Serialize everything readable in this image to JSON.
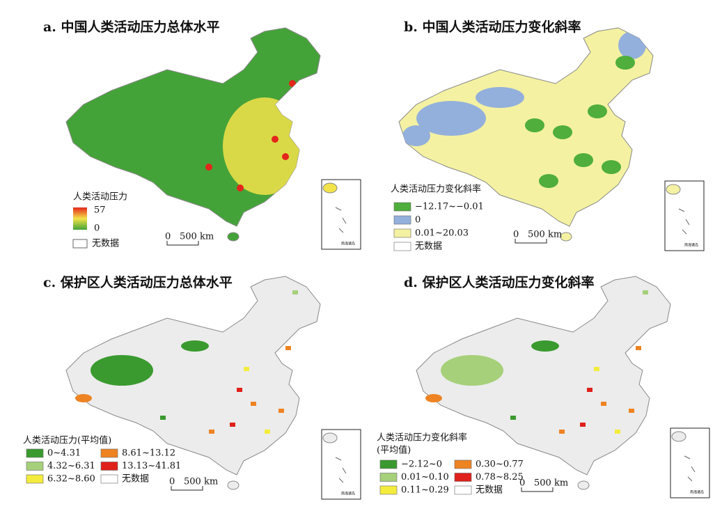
{
  "panels": [
    {
      "title": "a. 中国人类活动压力总体水平",
      "legend": {
        "title": "人类活动压力",
        "max": "57",
        "min": "0",
        "no_data": "无数据",
        "gradient": [
          "#e3261b",
          "#f3e34a",
          "#44a338"
        ]
      },
      "scale": {
        "zero": "0",
        "distance": "500 km"
      },
      "inset": "南海诸岛"
    },
    {
      "title": "b. 中国人类活动压力变化斜率",
      "legend": {
        "title": "人类活动压力变化斜率",
        "items": [
          {
            "label": "−12.17~−0.01",
            "color": "#4fae3c"
          },
          {
            "label": "0",
            "color": "#93b0dc"
          },
          {
            "label": "0.01~20.03",
            "color": "#f4f1a2"
          }
        ],
        "no_data": "无数据"
      },
      "scale": {
        "zero": "0",
        "distance": "500 km"
      },
      "inset": "南海诸岛"
    },
    {
      "title": "c. 保护区人类活动压力总体水平",
      "legend": {
        "title": "人类活动压力(平均值)",
        "items": [
          {
            "label": "0~4.31",
            "color": "#3a9a2f"
          },
          {
            "label": "4.32~6.31",
            "color": "#a6d07a"
          },
          {
            "label": "6.32~8.60",
            "color": "#f4ec3c"
          },
          {
            "label": "8.61~13.12",
            "color": "#ee8322"
          },
          {
            "label": "13.13~41.81",
            "color": "#e0201b"
          }
        ],
        "no_data": "无数据"
      },
      "scale": {
        "zero": "0",
        "distance": "500 km"
      },
      "inset": "南海诸岛"
    },
    {
      "title": "d. 保护区人类活动压力变化斜率",
      "legend": {
        "title": "人类活动压力变化斜率",
        "subtitle": "(平均值)",
        "items": [
          {
            "label": "−2.12~0",
            "color": "#3a9a2f"
          },
          {
            "label": "0.01~0.10",
            "color": "#a6d07a"
          },
          {
            "label": "0.11~0.29",
            "color": "#f4ec3c"
          },
          {
            "label": "0.30~0.77",
            "color": "#ee8322"
          },
          {
            "label": "0.78~8.25",
            "color": "#e0201b"
          }
        ],
        "no_data": "无数据"
      },
      "scale": {
        "zero": "0",
        "distance": "500 km"
      },
      "inset": "南海诸岛"
    }
  ]
}
